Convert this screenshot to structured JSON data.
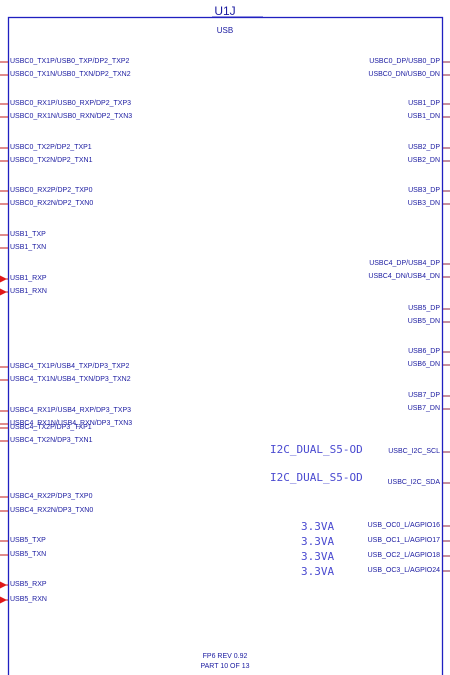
{
  "part": {
    "ref": "U1J",
    "name": "USB",
    "footer_line1": "FP6 REV 0.92",
    "footer_line2": "PART 10 OF 13"
  },
  "colors": {
    "box": "#2020c0",
    "text": "#1a1aa0",
    "net_label": "#4a4ad0",
    "left_stub": "#c01818",
    "right_stub": "#8a2040",
    "arrow": "#e01818"
  },
  "left_pins": [
    {
      "label": "USBC0_TX1P/USB0_TXP/DP2_TXP2",
      "arrow": false
    },
    {
      "label": "USBC0_TX1N/USB0_TXN/DP2_TXN2",
      "arrow": false
    },
    {
      "label": "USBC0_RX1P/USB0_RXP/DP2_TXP3",
      "arrow": false
    },
    {
      "label": "USBC0_RX1N/USB0_RXN/DP2_TXN3",
      "arrow": false
    },
    {
      "label": "USBC0_TX2P/DP2_TXP1",
      "arrow": false
    },
    {
      "label": "USBC0_TX2N/DP2_TXN1",
      "arrow": false
    },
    {
      "label": "USBC0_RX2P/DP2_TXP0",
      "arrow": false
    },
    {
      "label": "USBC0_RX2N/DP2_TXN0",
      "arrow": false
    },
    {
      "label": "USB1_TXP",
      "arrow": false
    },
    {
      "label": "USB1_TXN",
      "arrow": false
    },
    {
      "label": "USB1_RXP",
      "arrow": true
    },
    {
      "label": "USB1_RXN",
      "arrow": true
    },
    {
      "label": "USBC4_TX1P/USB4_TXP/DP3_TXP2",
      "arrow": false
    },
    {
      "label": "USBC4_TX1N/USB4_TXN/DP3_TXN2",
      "arrow": false
    },
    {
      "label": "USBC4_RX1P/USB4_RXP/DP3_TXP3",
      "arrow": false
    },
    {
      "label": "USBC4_RX1N/USB4_RXN/DP3_TXN3",
      "arrow": false
    },
    {
      "label": "USBC4_TX2P/DP3_TXP1",
      "arrow": false
    },
    {
      "label": "USBC4_TX2N/DP3_TXN1",
      "arrow": false
    },
    {
      "label": "USBC4_RX2P/DP3_TXP0",
      "arrow": false
    },
    {
      "label": "USBC4_RX2N/DP3_TXN0",
      "arrow": false
    },
    {
      "label": "USB5_TXP",
      "arrow": false
    },
    {
      "label": "USB5_TXN",
      "arrow": false
    },
    {
      "label": "USB5_RXP",
      "arrow": true
    },
    {
      "label": "USB5_RXN",
      "arrow": true
    }
  ],
  "right_pins": [
    {
      "label": "USBC0_DP/USB0_DP"
    },
    {
      "label": "USBC0_DN/USB0_DN"
    },
    {
      "label": "USB1_DP"
    },
    {
      "label": "USB1_DN"
    },
    {
      "label": "USB2_DP"
    },
    {
      "label": "USB2_DN"
    },
    {
      "label": "USB3_DP"
    },
    {
      "label": "USB3_DN"
    },
    {
      "label": "USBC4_DP/USB4_DP"
    },
    {
      "label": "USBC4_DN/USB4_DN"
    },
    {
      "label": "USB5_DP"
    },
    {
      "label": "USB5_DN"
    },
    {
      "label": "USB6_DP"
    },
    {
      "label": "USB6_DN"
    },
    {
      "label": "USB7_DP"
    },
    {
      "label": "USB7_DN"
    },
    {
      "label": "USBC_I2C_SCL"
    },
    {
      "label": "USBC_I2C_SDA"
    },
    {
      "label": "USB_OC0_L/AGPIO16"
    },
    {
      "label": "USB_OC1_L/AGPIO17"
    },
    {
      "label": "USB_OC2_L/AGPIO18"
    },
    {
      "label": "USB_OC3_L/AGPIO24"
    }
  ],
  "net_labels": [
    {
      "label": "I2C_DUAL_S5-OD"
    },
    {
      "label": "I2C_DUAL_S5-OD"
    },
    {
      "label": "3.3VA"
    },
    {
      "label": "3.3VA"
    },
    {
      "label": "3.3VA"
    },
    {
      "label": "3.3VA"
    }
  ]
}
